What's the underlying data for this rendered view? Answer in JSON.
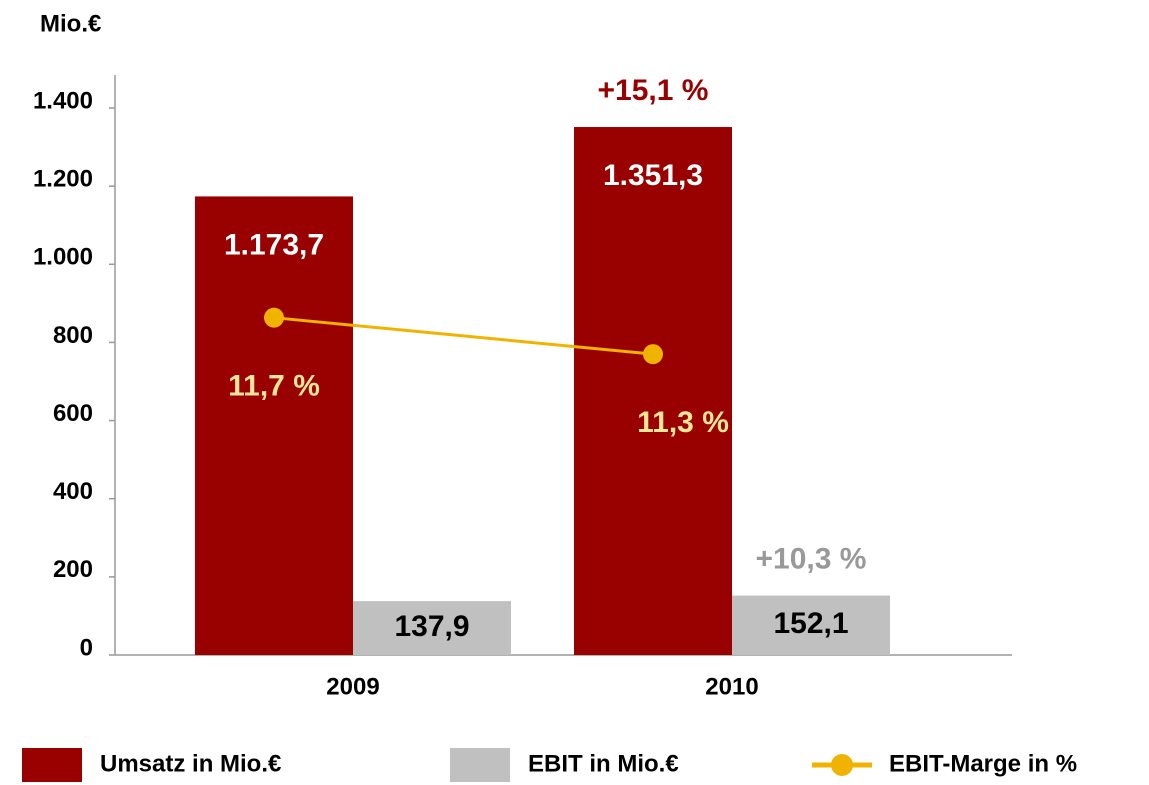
{
  "chart_data": {
    "type": "bar",
    "y_label": "Mio.€",
    "categories": [
      "2009",
      "2010"
    ],
    "series": [
      {
        "name": "Umsatz in Mio.€",
        "color": "#990000",
        "values": [
          1173.7,
          1351.3
        ],
        "value_labels": [
          "1.173,7",
          "1.351,3"
        ]
      },
      {
        "name": "EBIT in Mio.€",
        "color": "#c0c0c0",
        "values": [
          137.9,
          152.1
        ],
        "value_labels": [
          "137,9",
          "152,1"
        ]
      },
      {
        "name": "EBIT-Marge in %",
        "type": "line",
        "axis": "y2",
        "color": "#f0b400",
        "values": [
          11.7,
          11.3
        ],
        "value_labels": [
          "11,7 %",
          "11,3 %"
        ]
      }
    ],
    "annotations": [
      "+15,1 %",
      "+10,3 %"
    ],
    "ylim": [
      0,
      1400
    ],
    "yticks": [
      0,
      200,
      400,
      600,
      800,
      {
        "value": 1000,
        "label": "1.000"
      },
      {
        "value": 1200,
        "label": "1.200"
      },
      {
        "value": 1400,
        "label": "1.400"
      }
    ],
    "y2lim": [
      8,
      14
    ]
  }
}
